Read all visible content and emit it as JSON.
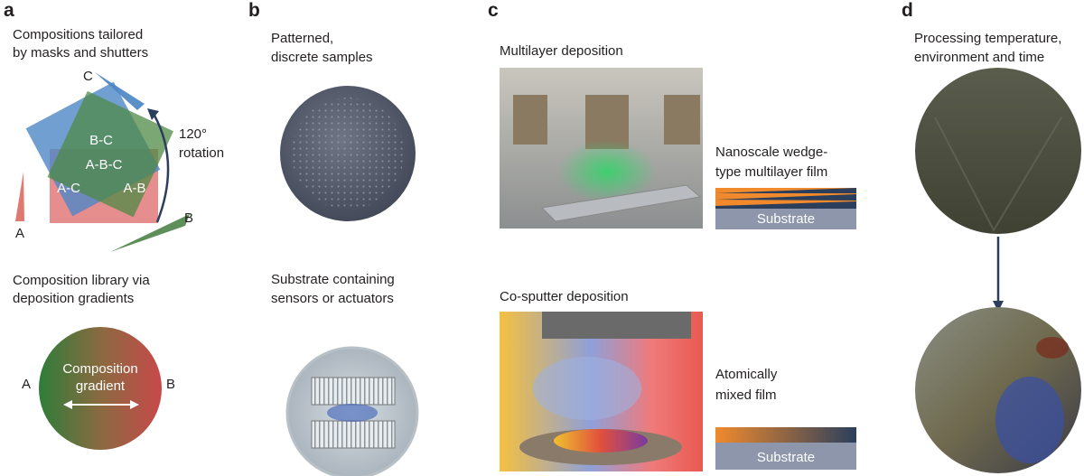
{
  "panel_a": {
    "label": "a",
    "title": [
      "Compositions tailored",
      "by masks and shutters"
    ],
    "source_labels": [
      "C",
      "B",
      "A"
    ],
    "region_labels": [
      "B-C",
      "A-B-C",
      "A-C",
      "A-B"
    ],
    "rotation": [
      "120°",
      "rotation"
    ],
    "gradient_title": [
      "Composition library via",
      "deposition gradients"
    ],
    "gradient_ends": [
      "A",
      "B"
    ],
    "gradient_label": [
      "Composition",
      "gradient"
    ]
  },
  "panel_b": {
    "label": "b",
    "title": [
      "Patterned,",
      "discrete samples"
    ],
    "subtitle": [
      "Substrate containing",
      "sensors or actuators"
    ]
  },
  "panel_c": {
    "label": "c",
    "multilayer_title": "Multilayer deposition",
    "multilayer_film": [
      "Nanoscale wedge-",
      "type multilayer film"
    ],
    "multilayer_substrate": "Substrate",
    "cosputter_title": "Co-sputter deposition",
    "mixed_film": [
      "Atomically",
      "mixed film"
    ],
    "mixed_substrate": "Substrate"
  },
  "panel_d": {
    "label": "d",
    "title": [
      "Processing temperature,",
      "environment and time"
    ]
  }
}
